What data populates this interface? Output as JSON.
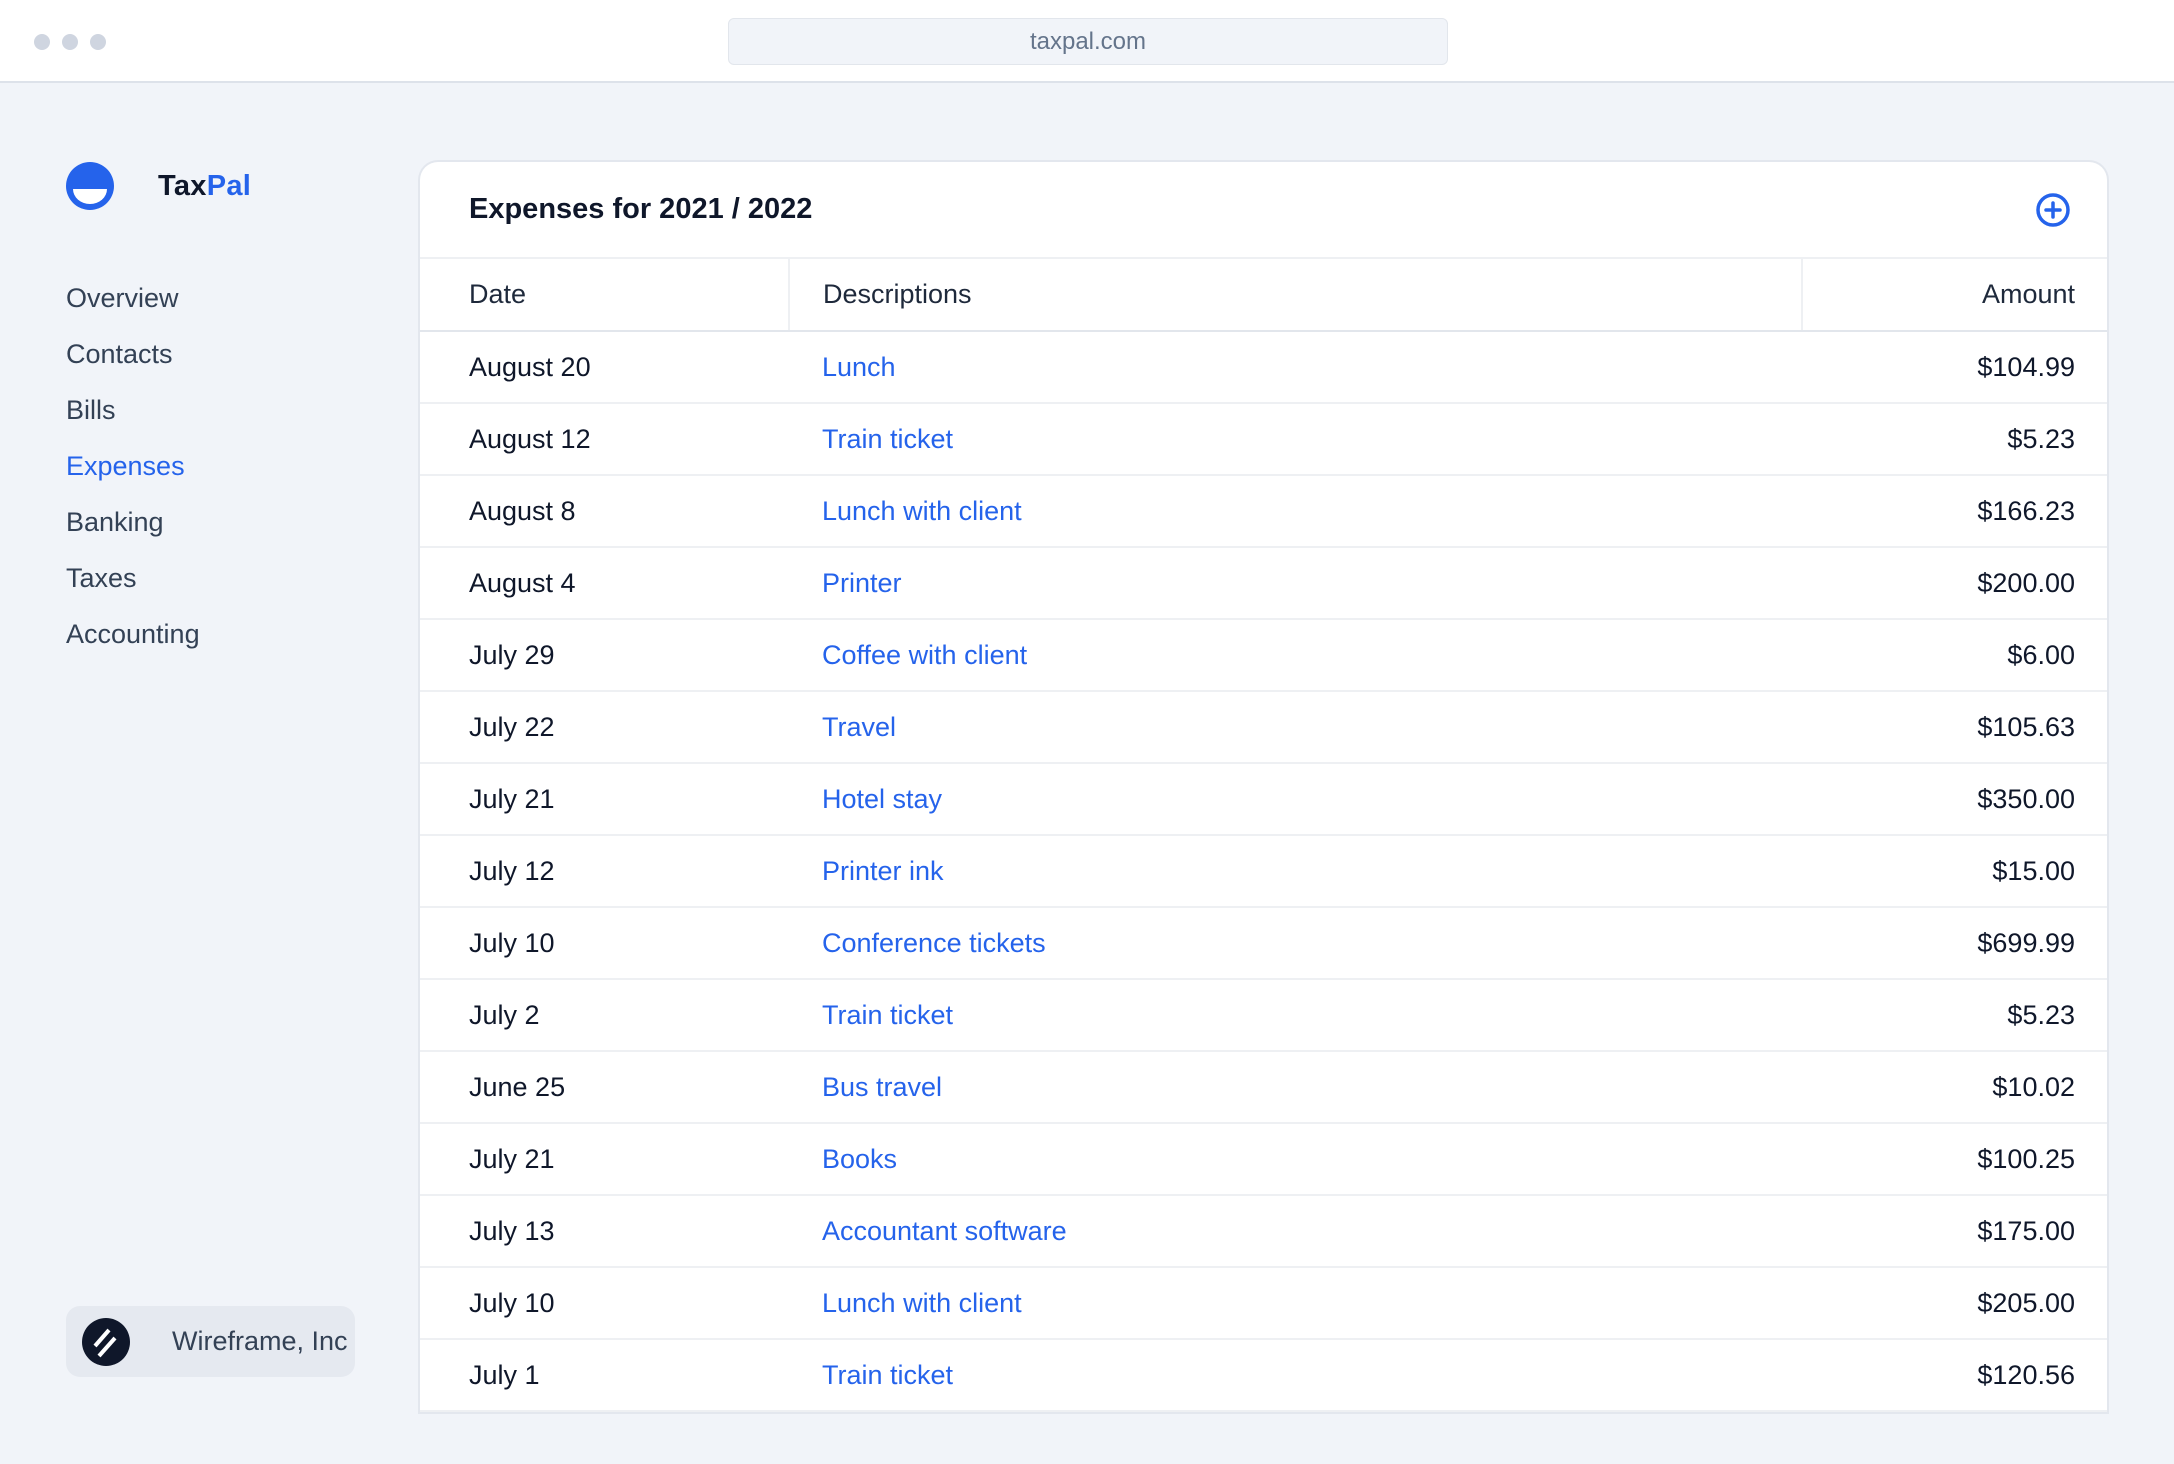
{
  "browser": {
    "url": "taxpal.com"
  },
  "brand": {
    "name_part1": "Tax",
    "name_part2": "Pal",
    "accent": "#2563eb"
  },
  "sidebar": {
    "items": [
      {
        "label": "Overview"
      },
      {
        "label": "Contacts"
      },
      {
        "label": "Bills"
      },
      {
        "label": "Expenses",
        "active": true
      },
      {
        "label": "Banking"
      },
      {
        "label": "Taxes"
      },
      {
        "label": "Accounting"
      }
    ]
  },
  "company": {
    "name": "Wireframe, Inc"
  },
  "main": {
    "title": "Expenses for 2021 / 2022",
    "add_icon": "plus-circle-icon",
    "columns": [
      "Date",
      "Descriptions",
      "Amount"
    ],
    "rows": [
      {
        "date": "August 20",
        "description": "Lunch",
        "amount": "$104.99"
      },
      {
        "date": "August 12",
        "description": "Train ticket",
        "amount": "$5.23"
      },
      {
        "date": "August 8",
        "description": "Lunch with client",
        "amount": "$166.23"
      },
      {
        "date": "August 4",
        "description": "Printer",
        "amount": "$200.00"
      },
      {
        "date": "July 29",
        "description": "Coffee with client",
        "amount": "$6.00"
      },
      {
        "date": "July 22",
        "description": "Travel",
        "amount": "$105.63"
      },
      {
        "date": "July 21",
        "description": "Hotel stay",
        "amount": "$350.00"
      },
      {
        "date": "July 12",
        "description": "Printer ink",
        "amount": "$15.00"
      },
      {
        "date": "July 10",
        "description": "Conference tickets",
        "amount": "$699.99"
      },
      {
        "date": "July 2",
        "description": "Train ticket",
        "amount": "$5.23"
      },
      {
        "date": "June 25",
        "description": "Bus travel",
        "amount": "$10.02"
      },
      {
        "date": "July 21",
        "description": "Books",
        "amount": "$100.25"
      },
      {
        "date": "July 13",
        "description": "Accountant software",
        "amount": "$175.00"
      },
      {
        "date": "July 10",
        "description": "Lunch with client",
        "amount": "$205.00"
      },
      {
        "date": "July 1",
        "description": "Train ticket",
        "amount": "$120.56"
      }
    ]
  }
}
